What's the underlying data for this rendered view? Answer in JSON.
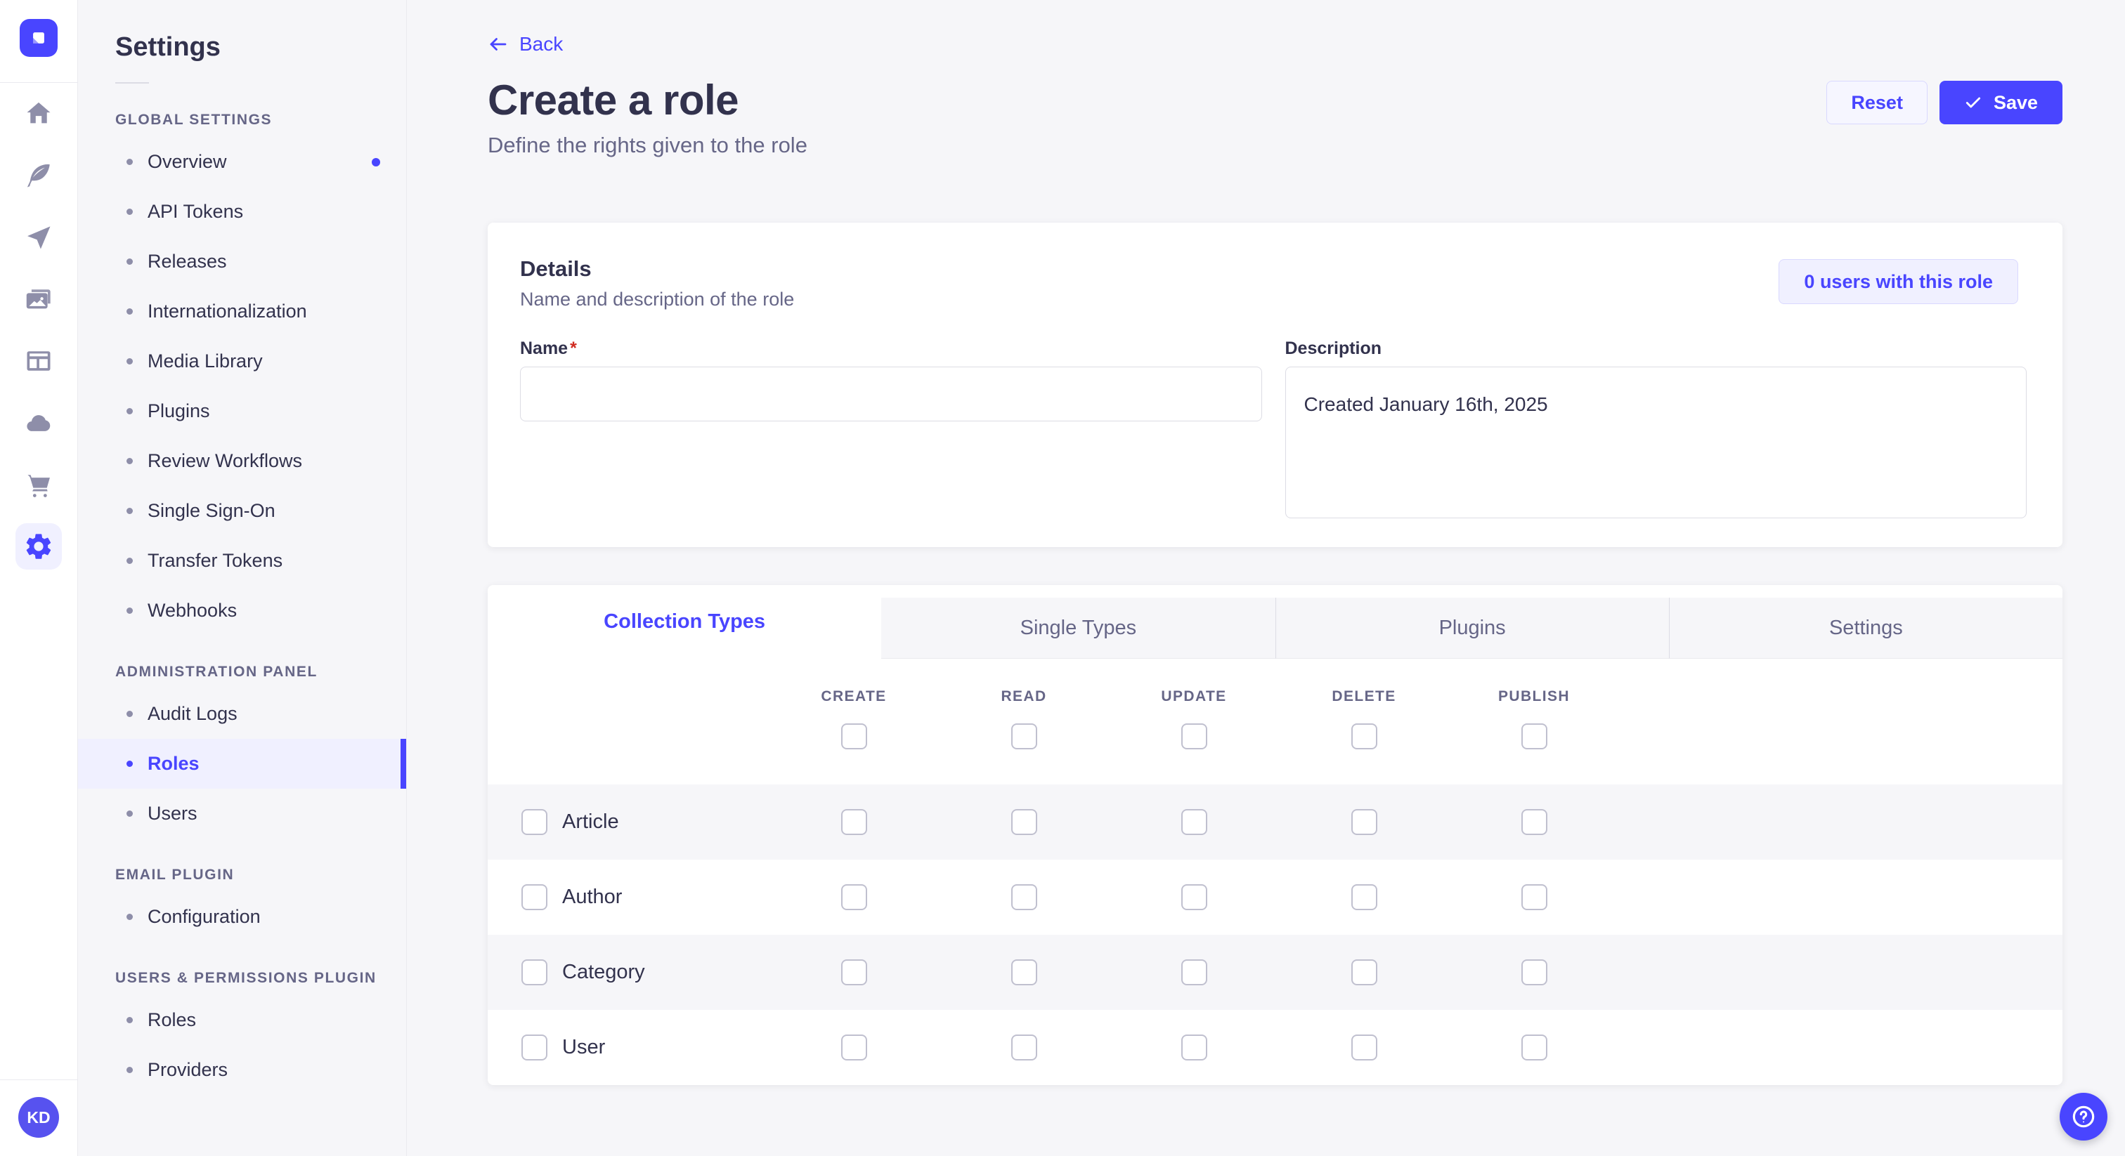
{
  "colors": {
    "accent": "#4945ff",
    "accent_light": "#f0f0ff",
    "accent_border": "#d9d8ff",
    "background": "#f6f6f9",
    "text": "#32324d",
    "text_muted": "#666687",
    "danger": "#d02b20"
  },
  "icon_rail": {
    "items": [
      {
        "name": "home",
        "active": false
      },
      {
        "name": "feather",
        "active": false
      },
      {
        "name": "send",
        "active": false
      },
      {
        "name": "images",
        "active": false
      },
      {
        "name": "layout",
        "active": false
      },
      {
        "name": "cloud",
        "active": false
      },
      {
        "name": "cart",
        "active": false
      },
      {
        "name": "gear",
        "active": true
      }
    ],
    "avatar_initials": "KD"
  },
  "sidebar": {
    "title": "Settings",
    "sections": [
      {
        "label": "GLOBAL SETTINGS",
        "items": [
          {
            "label": "Overview",
            "dot": true
          },
          {
            "label": "API Tokens"
          },
          {
            "label": "Releases"
          },
          {
            "label": "Internationalization"
          },
          {
            "label": "Media Library"
          },
          {
            "label": "Plugins"
          },
          {
            "label": "Review Workflows"
          },
          {
            "label": "Single Sign-On"
          },
          {
            "label": "Transfer Tokens"
          },
          {
            "label": "Webhooks"
          }
        ]
      },
      {
        "label": "ADMINISTRATION PANEL",
        "items": [
          {
            "label": "Audit Logs"
          },
          {
            "label": "Roles",
            "active": true
          },
          {
            "label": "Users"
          }
        ]
      },
      {
        "label": "EMAIL PLUGIN",
        "items": [
          {
            "label": "Configuration"
          }
        ]
      },
      {
        "label": "USERS & PERMISSIONS PLUGIN",
        "items": [
          {
            "label": "Roles"
          },
          {
            "label": "Providers"
          }
        ]
      }
    ]
  },
  "header": {
    "back_label": "Back",
    "title": "Create a role",
    "subtitle": "Define the rights given to the role",
    "reset_label": "Reset",
    "save_label": "Save"
  },
  "details": {
    "heading": "Details",
    "subheading": "Name and description of the role",
    "users_badge": "0 users with this role",
    "name_label": "Name",
    "required_mark": "*",
    "name_value": "",
    "description_label": "Description",
    "description_value": "Created January 16th, 2025"
  },
  "tabs": [
    {
      "label": "Collection Types",
      "active": true
    },
    {
      "label": "Single Types",
      "active": false
    },
    {
      "label": "Plugins",
      "active": false
    },
    {
      "label": "Settings",
      "active": false
    }
  ],
  "permissions": {
    "columns": [
      "CREATE",
      "READ",
      "UPDATE",
      "DELETE",
      "PUBLISH"
    ],
    "rows": [
      "Article",
      "Author",
      "Category",
      "User"
    ]
  }
}
